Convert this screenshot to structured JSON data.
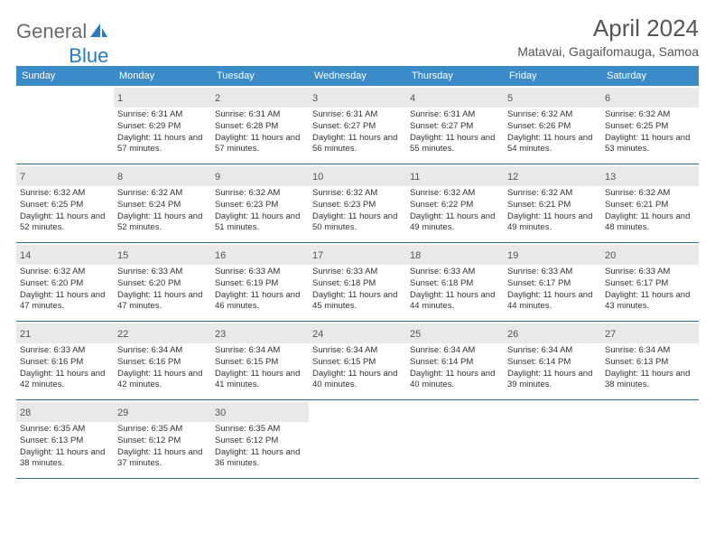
{
  "brand": {
    "general": "General",
    "blue": "Blue"
  },
  "title": "April 2024",
  "location": "Matavai, Gagaifomauga, Samoa",
  "colors": {
    "header_bg": "#3b8bc9",
    "week_border": "#2a6aa0",
    "daynum_bg": "#e9e9e9",
    "text": "#333333",
    "title_text": "#555555",
    "logo_gray": "#6b6b6b",
    "logo_blue": "#2a7bbf"
  },
  "day_headers": [
    "Sunday",
    "Monday",
    "Tuesday",
    "Wednesday",
    "Thursday",
    "Friday",
    "Saturday"
  ],
  "weeks": [
    [
      {
        "empty": true
      },
      {
        "n": "1",
        "sr": "Sunrise: 6:31 AM",
        "ss": "Sunset: 6:29 PM",
        "dl": "Daylight: 11 hours and 57 minutes."
      },
      {
        "n": "2",
        "sr": "Sunrise: 6:31 AM",
        "ss": "Sunset: 6:28 PM",
        "dl": "Daylight: 11 hours and 57 minutes."
      },
      {
        "n": "3",
        "sr": "Sunrise: 6:31 AM",
        "ss": "Sunset: 6:27 PM",
        "dl": "Daylight: 11 hours and 56 minutes."
      },
      {
        "n": "4",
        "sr": "Sunrise: 6:31 AM",
        "ss": "Sunset: 6:27 PM",
        "dl": "Daylight: 11 hours and 55 minutes."
      },
      {
        "n": "5",
        "sr": "Sunrise: 6:32 AM",
        "ss": "Sunset: 6:26 PM",
        "dl": "Daylight: 11 hours and 54 minutes."
      },
      {
        "n": "6",
        "sr": "Sunrise: 6:32 AM",
        "ss": "Sunset: 6:25 PM",
        "dl": "Daylight: 11 hours and 53 minutes."
      }
    ],
    [
      {
        "n": "7",
        "sr": "Sunrise: 6:32 AM",
        "ss": "Sunset: 6:25 PM",
        "dl": "Daylight: 11 hours and 52 minutes."
      },
      {
        "n": "8",
        "sr": "Sunrise: 6:32 AM",
        "ss": "Sunset: 6:24 PM",
        "dl": "Daylight: 11 hours and 52 minutes."
      },
      {
        "n": "9",
        "sr": "Sunrise: 6:32 AM",
        "ss": "Sunset: 6:23 PM",
        "dl": "Daylight: 11 hours and 51 minutes."
      },
      {
        "n": "10",
        "sr": "Sunrise: 6:32 AM",
        "ss": "Sunset: 6:23 PM",
        "dl": "Daylight: 11 hours and 50 minutes."
      },
      {
        "n": "11",
        "sr": "Sunrise: 6:32 AM",
        "ss": "Sunset: 6:22 PM",
        "dl": "Daylight: 11 hours and 49 minutes."
      },
      {
        "n": "12",
        "sr": "Sunrise: 6:32 AM",
        "ss": "Sunset: 6:21 PM",
        "dl": "Daylight: 11 hours and 49 minutes."
      },
      {
        "n": "13",
        "sr": "Sunrise: 6:32 AM",
        "ss": "Sunset: 6:21 PM",
        "dl": "Daylight: 11 hours and 48 minutes."
      }
    ],
    [
      {
        "n": "14",
        "sr": "Sunrise: 6:32 AM",
        "ss": "Sunset: 6:20 PM",
        "dl": "Daylight: 11 hours and 47 minutes."
      },
      {
        "n": "15",
        "sr": "Sunrise: 6:33 AM",
        "ss": "Sunset: 6:20 PM",
        "dl": "Daylight: 11 hours and 47 minutes."
      },
      {
        "n": "16",
        "sr": "Sunrise: 6:33 AM",
        "ss": "Sunset: 6:19 PM",
        "dl": "Daylight: 11 hours and 46 minutes."
      },
      {
        "n": "17",
        "sr": "Sunrise: 6:33 AM",
        "ss": "Sunset: 6:18 PM",
        "dl": "Daylight: 11 hours and 45 minutes."
      },
      {
        "n": "18",
        "sr": "Sunrise: 6:33 AM",
        "ss": "Sunset: 6:18 PM",
        "dl": "Daylight: 11 hours and 44 minutes."
      },
      {
        "n": "19",
        "sr": "Sunrise: 6:33 AM",
        "ss": "Sunset: 6:17 PM",
        "dl": "Daylight: 11 hours and 44 minutes."
      },
      {
        "n": "20",
        "sr": "Sunrise: 6:33 AM",
        "ss": "Sunset: 6:17 PM",
        "dl": "Daylight: 11 hours and 43 minutes."
      }
    ],
    [
      {
        "n": "21",
        "sr": "Sunrise: 6:33 AM",
        "ss": "Sunset: 6:16 PM",
        "dl": "Daylight: 11 hours and 42 minutes."
      },
      {
        "n": "22",
        "sr": "Sunrise: 6:34 AM",
        "ss": "Sunset: 6:16 PM",
        "dl": "Daylight: 11 hours and 42 minutes."
      },
      {
        "n": "23",
        "sr": "Sunrise: 6:34 AM",
        "ss": "Sunset: 6:15 PM",
        "dl": "Daylight: 11 hours and 41 minutes."
      },
      {
        "n": "24",
        "sr": "Sunrise: 6:34 AM",
        "ss": "Sunset: 6:15 PM",
        "dl": "Daylight: 11 hours and 40 minutes."
      },
      {
        "n": "25",
        "sr": "Sunrise: 6:34 AM",
        "ss": "Sunset: 6:14 PM",
        "dl": "Daylight: 11 hours and 40 minutes."
      },
      {
        "n": "26",
        "sr": "Sunrise: 6:34 AM",
        "ss": "Sunset: 6:14 PM",
        "dl": "Daylight: 11 hours and 39 minutes."
      },
      {
        "n": "27",
        "sr": "Sunrise: 6:34 AM",
        "ss": "Sunset: 6:13 PM",
        "dl": "Daylight: 11 hours and 38 minutes."
      }
    ],
    [
      {
        "n": "28",
        "sr": "Sunrise: 6:35 AM",
        "ss": "Sunset: 6:13 PM",
        "dl": "Daylight: 11 hours and 38 minutes."
      },
      {
        "n": "29",
        "sr": "Sunrise: 6:35 AM",
        "ss": "Sunset: 6:12 PM",
        "dl": "Daylight: 11 hours and 37 minutes."
      },
      {
        "n": "30",
        "sr": "Sunrise: 6:35 AM",
        "ss": "Sunset: 6:12 PM",
        "dl": "Daylight: 11 hours and 36 minutes."
      },
      {
        "empty": true
      },
      {
        "empty": true
      },
      {
        "empty": true
      },
      {
        "empty": true
      }
    ]
  ]
}
